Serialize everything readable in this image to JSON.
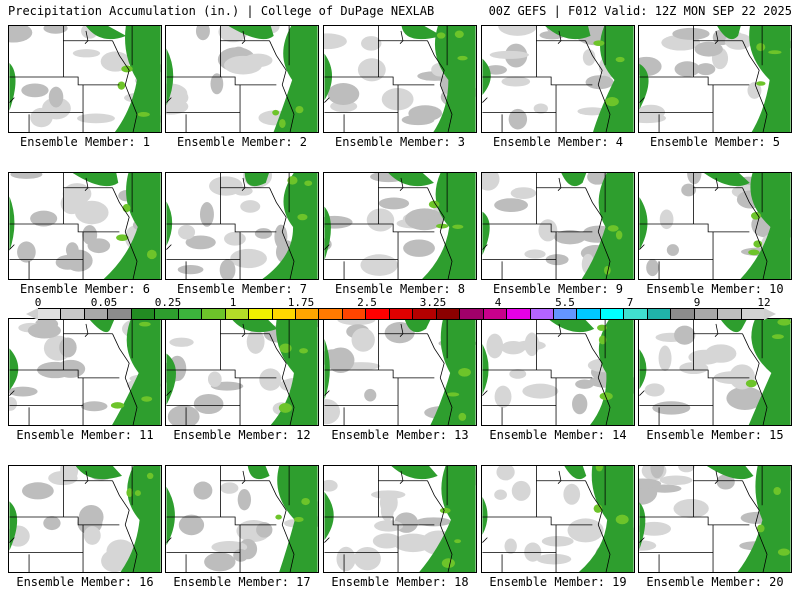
{
  "header": {
    "left": "Precipitation Accumulation (in.) | College of DuPage NEXLAB",
    "right": "00Z GEFS | F012 Valid: 12Z MON SEP 22 2025"
  },
  "members": [
    {
      "label": "Ensemble Member: 1"
    },
    {
      "label": "Ensemble Member: 2"
    },
    {
      "label": "Ensemble Member: 3"
    },
    {
      "label": "Ensemble Member: 4"
    },
    {
      "label": "Ensemble Member: 5"
    },
    {
      "label": "Ensemble Member: 6"
    },
    {
      "label": "Ensemble Member: 7"
    },
    {
      "label": "Ensemble Member: 8"
    },
    {
      "label": "Ensemble Member: 9"
    },
    {
      "label": "Ensemble Member: 10"
    },
    {
      "label": "Ensemble Member: 11"
    },
    {
      "label": "Ensemble Member: 12"
    },
    {
      "label": "Ensemble Member: 13"
    },
    {
      "label": "Ensemble Member: 14"
    },
    {
      "label": "Ensemble Member: 15"
    },
    {
      "label": "Ensemble Member: 16"
    },
    {
      "label": "Ensemble Member: 17"
    },
    {
      "label": "Ensemble Member: 18"
    },
    {
      "label": "Ensemble Member: 19"
    },
    {
      "label": "Ensemble Member: 20"
    }
  ],
  "colorbar": {
    "tick_labels": [
      "0",
      "0.05",
      "0.25",
      "1",
      "1.75",
      "2.5",
      "3.25",
      "4",
      "5.5",
      "7",
      "9",
      "12"
    ],
    "colors": [
      "#e0e0e0",
      "#c8c8c8",
      "#a8a8a8",
      "#8c8c8c",
      "#228b22",
      "#2e9e2e",
      "#3cb43c",
      "#6dc42a",
      "#b4dc28",
      "#f0f000",
      "#ffd700",
      "#ffa500",
      "#ff7a00",
      "#ff4500",
      "#ff0000",
      "#e00000",
      "#b40000",
      "#8b0000",
      "#a0006a",
      "#c8008c",
      "#e600e6",
      "#b464ff",
      "#6495ff",
      "#00c8ff",
      "#00ffff",
      "#40e0d0",
      "#20b2aa",
      "#8c8c8c",
      "#a8a8a8",
      "#bebebe",
      "#d2d2d2"
    ]
  }
}
